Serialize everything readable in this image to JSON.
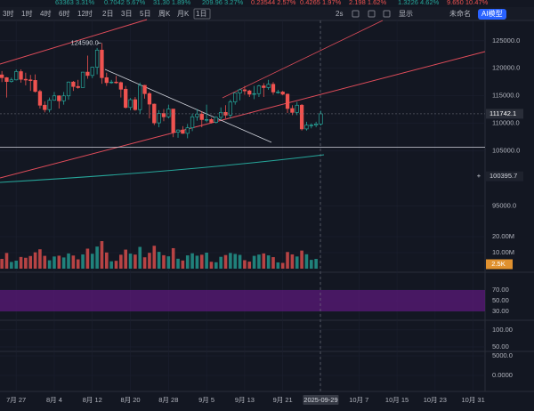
{
  "ui": {
    "ticker": [
      "63363 3.31%",
      "0.7042 5.67%",
      "31.30 1.89%",
      "209.96 3.27%",
      "0.23544 2.57%",
      "0.4265 1.97%",
      "2.198 1.62%",
      "1.3226 4.62%",
      "9.650 10.47%"
    ],
    "ticker_colors": [
      "#26a69a",
      "#26a69a",
      "#26a69a",
      "#26a69a",
      "#ef5350",
      "#ef5350",
      "#ef5350",
      "#26a69a",
      "#ef5350"
    ],
    "timeframes": [
      "3时",
      "1时",
      "4时",
      "6时",
      "12时",
      "2日",
      "3日",
      "5日",
      "周K",
      "月K",
      "1日"
    ],
    "active_timeframe": 10,
    "right_tools": [
      "2s",
      "显示",
      "未命名"
    ],
    "ai_button": "AI模型"
  },
  "chart_data": {
    "type": "candlestick",
    "up_color": "#26a69a",
    "down_color": "#ef5350",
    "open": [
      118800,
      118300,
      117600,
      117900,
      119400,
      118000,
      117900,
      117800,
      115800,
      113300,
      112500,
      114200,
      115000,
      114100,
      115000,
      117500,
      116700,
      116500,
      119300,
      118700,
      120200,
      123300,
      118300,
      117400,
      117500,
      117400,
      116200,
      112900,
      114300,
      112500,
      116900,
      115400,
      113500,
      110100,
      111800,
      111200,
      112600,
      108400,
      108800,
      108200,
      109200,
      111200,
      111700,
      110700,
      110700,
      110200,
      111100,
      112000,
      111500,
      113900,
      115500,
      116100,
      115900,
      115300,
      115400,
      116800,
      116500,
      117100,
      115700,
      115700,
      115300,
      112700,
      112000,
      113300,
      109000,
      109700,
      109700,
      109900
    ],
    "high": [
      119500,
      118400,
      118300,
      119800,
      119800,
      119200,
      118800,
      118900,
      116100,
      114000,
      114700,
      115700,
      115100,
      115700,
      117600,
      117700,
      117900,
      119300,
      122300,
      120300,
      123700,
      124590,
      119200,
      117900,
      118600,
      117600,
      116800,
      114600,
      114800,
      117400,
      117000,
      115700,
      113600,
      112400,
      112600,
      113400,
      112600,
      108900,
      109500,
      109900,
      111800,
      112600,
      112200,
      113400,
      111000,
      111300,
      112900,
      113300,
      114300,
      115500,
      116300,
      116800,
      116100,
      116800,
      117000,
      117300,
      117900,
      117500,
      116100,
      115900,
      115400,
      113300,
      113900,
      113500,
      110300,
      110000,
      110300,
      112300
    ],
    "low": [
      117500,
      114700,
      117400,
      117800,
      117400,
      116900,
      115900,
      115600,
      112700,
      112000,
      112000,
      114100,
      112700,
      113400,
      114300,
      115900,
      116300,
      116500,
      118100,
      118200,
      118900,
      117200,
      116800,
      117200,
      117200,
      114700,
      112700,
      112400,
      112300,
      111700,
      114500,
      110900,
      109700,
      109300,
      110400,
      110900,
      107500,
      107400,
      108100,
      107300,
      108600,
      110500,
      109300,
      110200,
      110000,
      110000,
      110600,
      110900,
      110900,
      113400,
      114200,
      115200,
      114800,
      114400,
      114800,
      114800,
      116100,
      115200,
      115400,
      115100,
      111900,
      111500,
      111500,
      108700,
      108700,
      109100,
      109300,
      109600
    ],
    "close": [
      118300,
      117600,
      117900,
      119400,
      118000,
      117900,
      117800,
      115800,
      113300,
      112500,
      114200,
      115000,
      114100,
      115000,
      117500,
      116700,
      116500,
      119300,
      118700,
      120200,
      123300,
      118300,
      117400,
      117500,
      117400,
      116200,
      112900,
      114300,
      112500,
      116900,
      115400,
      113500,
      110100,
      111800,
      111200,
      112600,
      108400,
      108800,
      108200,
      109200,
      111200,
      111700,
      110700,
      110700,
      110200,
      111100,
      112000,
      111500,
      113900,
      115500,
      116100,
      115900,
      115300,
      115400,
      116800,
      116500,
      117100,
      115700,
      115700,
      115300,
      112700,
      112000,
      113300,
      109000,
      109700,
      109700,
      109900,
      111742.1
    ],
    "xlim": [
      -0.4,
      101.5
    ],
    "xticks": [
      {
        "value": 3,
        "label": "7月 27"
      },
      {
        "value": 11,
        "label": "8月 4"
      },
      {
        "value": 19,
        "label": "8月 12"
      },
      {
        "value": 27,
        "label": "8月 20"
      },
      {
        "value": 35,
        "label": "8月 28"
      },
      {
        "value": 43,
        "label": "9月 5"
      },
      {
        "value": 51,
        "label": "9月 13"
      },
      {
        "value": 59,
        "label": "9月 21"
      },
      {
        "value": 67,
        "label": "2025-09-29"
      },
      {
        "value": 75,
        "label": "10月 7"
      },
      {
        "value": 83,
        "label": "10月 15"
      },
      {
        "value": 91,
        "label": "10月 23"
      },
      {
        "value": 99,
        "label": "10月 31"
      }
    ],
    "ylim": [
      83000,
      129000
    ],
    "yticks": [
      {
        "value": 125000,
        "label": "125000.0"
      },
      {
        "value": 120000,
        "label": "120000.0"
      },
      {
        "value": 115000,
        "label": "115000.0"
      },
      {
        "value": 110000,
        "label": "110000.0"
      },
      {
        "value": 105000,
        "label": "105000.0"
      },
      {
        "value": 95000,
        "label": "95000.0"
      }
    ],
    "grid": true,
    "high_annotation": {
      "value": 124590,
      "label": "124590.0"
    },
    "support_line": 105700,
    "ma_marker": 100395.7,
    "volume": {
      "values": [
        6100000,
        9800000,
        4200000,
        5000000,
        7300000,
        6800000,
        7900000,
        10200000,
        12100000,
        8000000,
        5200000,
        7600000,
        8100000,
        7000000,
        9500000,
        8200000,
        5800000,
        8900000,
        12500000,
        9300000,
        13800000,
        17200000,
        10100000,
        4600000,
        4900000,
        8700000,
        11900000,
        9400000,
        8800000,
        13600000,
        7100000,
        9900000,
        14300000,
        10500000,
        8400000,
        7700000,
        12800000,
        6200000,
        5100000,
        8300000,
        9600000,
        8100000,
        8700000,
        10000000,
        4300000,
        4000000,
        7400000,
        8500000,
        9800000,
        9200000,
        8600000,
        5300000,
        4400000,
        8000000,
        8800000,
        9500000,
        8300000,
        7200000,
        3900000,
        3600000,
        10400000,
        8900000,
        7600000,
        11300000,
        9000000,
        5500000,
        6100000,
        2500
      ],
      "ylim": [
        0,
        40000000
      ],
      "yticks": [
        {
          "value": 20000000,
          "label": "20.00M"
        },
        {
          "value": 10000000,
          "label": "10.00M"
        }
      ],
      "last_label": "2.5K"
    },
    "rsi": {
      "ylim": [
        20,
        80
      ],
      "yticks": [
        {
          "value": 70,
          "label": "70.00"
        },
        {
          "value": 50,
          "label": "50.00"
        },
        {
          "value": 30,
          "label": "30.00"
        }
      ],
      "band": [
        30,
        70
      ]
    },
    "oscillator": {
      "ylim": [
        0,
        110
      ],
      "yticks": [
        {
          "value": 100,
          "label": "100.00"
        },
        {
          "value": 50,
          "label": "50.00"
        }
      ]
    },
    "macd": {
      "ylim": [
        -3000,
        6000
      ],
      "yticks": [
        {
          "value": 5000,
          "label": "5000.0"
        },
        {
          "value": 0,
          "label": "0.0000"
        }
      ]
    }
  }
}
